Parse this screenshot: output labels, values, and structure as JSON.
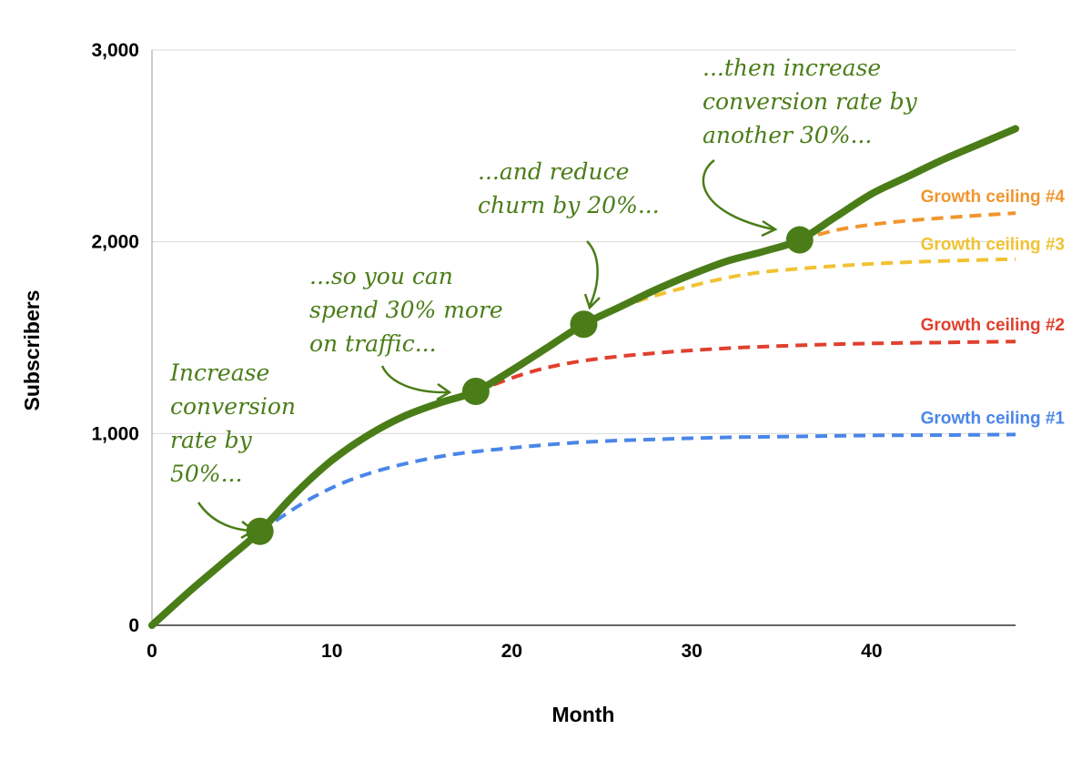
{
  "chart_data": {
    "type": "line",
    "title": "",
    "xlabel": "Month",
    "ylabel": "Subscribers",
    "xlim": [
      0,
      48
    ],
    "ylim": [
      0,
      3000
    ],
    "x_ticks": [
      0,
      10,
      20,
      30,
      40
    ],
    "y_ticks": [
      0,
      1000,
      2000,
      3000
    ],
    "y_tick_labels": [
      "0",
      "1,000",
      "2,000",
      "3,000"
    ],
    "grid": "horizontal",
    "legend": "none",
    "main_series": {
      "color": "#4a7d18",
      "x": [
        0,
        2,
        4,
        6,
        8,
        10,
        12,
        14,
        16,
        18,
        20,
        22,
        24,
        26,
        28,
        30,
        32,
        34,
        36,
        38,
        40,
        42,
        44,
        46,
        48
      ],
      "values": [
        0,
        170,
        330,
        490,
        690,
        860,
        990,
        1090,
        1160,
        1220,
        1330,
        1450,
        1570,
        1660,
        1750,
        1830,
        1900,
        1950,
        2010,
        2130,
        2250,
        2340,
        2430,
        2510,
        2590
      ]
    },
    "milestones": [
      {
        "x": 6,
        "y": 490
      },
      {
        "x": 18,
        "y": 1220
      },
      {
        "x": 24,
        "y": 1570
      },
      {
        "x": 36,
        "y": 2010
      }
    ],
    "ceilings": [
      {
        "name": "Growth ceiling #1",
        "color": "#4a86e8",
        "x": [
          6,
          9,
          12,
          16,
          20,
          24,
          28,
          32,
          36,
          40,
          44,
          48
        ],
        "values": [
          490,
          670,
          790,
          880,
          925,
          955,
          970,
          980,
          985,
          990,
          992,
          995
        ]
      },
      {
        "name": "Growth ceiling #2",
        "color": "#e0402e",
        "x": [
          18,
          21,
          24,
          28,
          32,
          36,
          40,
          44,
          48
        ],
        "values": [
          1220,
          1320,
          1380,
          1420,
          1445,
          1460,
          1470,
          1475,
          1480
        ]
      },
      {
        "name": "Growth ceiling #3",
        "color": "#f1c232",
        "x": [
          24,
          27,
          30,
          33,
          36,
          40,
          44,
          48
        ],
        "values": [
          1570,
          1690,
          1770,
          1830,
          1860,
          1885,
          1900,
          1910
        ]
      },
      {
        "name": "Growth ceiling #4",
        "color": "#f0962e",
        "x": [
          36,
          38,
          40,
          42,
          44,
          46,
          48
        ],
        "values": [
          2010,
          2060,
          2090,
          2110,
          2125,
          2138,
          2150
        ]
      }
    ],
    "annotations": [
      {
        "lines": [
          "Increase",
          "conversion",
          "rate by",
          "50%..."
        ]
      },
      {
        "lines": [
          "...so you can",
          "spend 30% more",
          "on traffic..."
        ]
      },
      {
        "lines": [
          "...and reduce",
          "churn by 20%..."
        ]
      },
      {
        "lines": [
          "...then increase",
          "conversion rate by",
          "another 30%..."
        ]
      }
    ]
  }
}
